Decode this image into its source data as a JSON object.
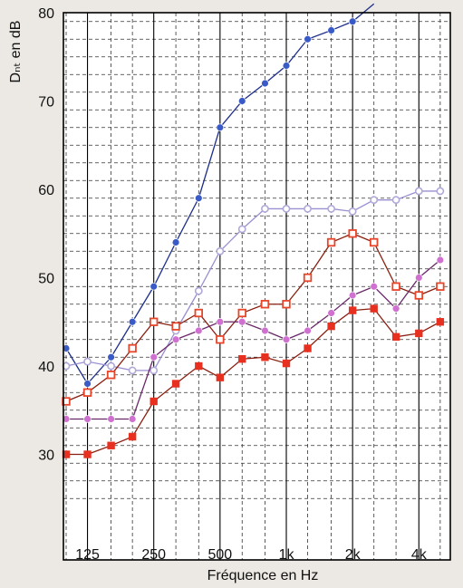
{
  "chart_data": {
    "type": "line",
    "xlabel": "Fréquence en Hz",
    "ylabel": "Dₙₜ en dB",
    "ylim": [
      25,
      80
    ],
    "y_ticks": [
      30,
      40,
      50,
      60,
      70,
      80
    ],
    "x_scale": "log",
    "x": [
      100,
      125,
      160,
      200,
      250,
      315,
      400,
      500,
      630,
      800,
      1000,
      1250,
      1600,
      2000,
      2500,
      3150,
      4000,
      5000
    ],
    "x_tick_labels": [
      {
        "value": 125,
        "label": "125"
      },
      {
        "value": 250,
        "label": "250"
      },
      {
        "value": 500,
        "label": "500"
      },
      {
        "value": 1000,
        "label": "1k"
      },
      {
        "value": 2000,
        "label": "2k"
      },
      {
        "value": 4000,
        "label": "4k"
      }
    ],
    "grid": true,
    "series": [
      {
        "color": "#3a5bc7",
        "line_color": "#1e2f8a",
        "marker": "filled-circle",
        "values": [
          42,
          38,
          41,
          45,
          49,
          54,
          59,
          67,
          70,
          72,
          74,
          77,
          78,
          79,
          81,
          null,
          null,
          null
        ]
      },
      {
        "color": "#b0a8d8",
        "line_color": "#9a8fd0",
        "marker": "open-circle",
        "values": [
          40,
          40.5,
          40,
          39.5,
          39.5,
          44,
          48.5,
          53,
          55.5,
          57.8,
          57.8,
          57.8,
          57.8,
          57.5,
          58.8,
          58.8,
          59.8,
          59.8
        ]
      },
      {
        "color": "#e8462a",
        "line_color": "#8a1f10",
        "marker": "open-square",
        "values": [
          36,
          37,
          39,
          42,
          45,
          44.5,
          46,
          43,
          46,
          47,
          47,
          50,
          54,
          55,
          54,
          49,
          48,
          49
        ]
      },
      {
        "color": "#d070d0",
        "line_color": "#6a2a6a",
        "marker": "filled-circle",
        "values": [
          34,
          34,
          34,
          34,
          41,
          43,
          44,
          45,
          45,
          44,
          43,
          44,
          46,
          48,
          49,
          46.5,
          50,
          52
        ]
      },
      {
        "color": "#e83020",
        "line_color": "#8a1f10",
        "marker": "filled-square",
        "values": [
          30,
          30,
          31,
          32,
          36,
          38,
          40,
          38.7,
          40.8,
          41,
          40.3,
          42,
          44.5,
          46.3,
          46.5,
          43.3,
          43.7,
          45
        ]
      }
    ]
  }
}
